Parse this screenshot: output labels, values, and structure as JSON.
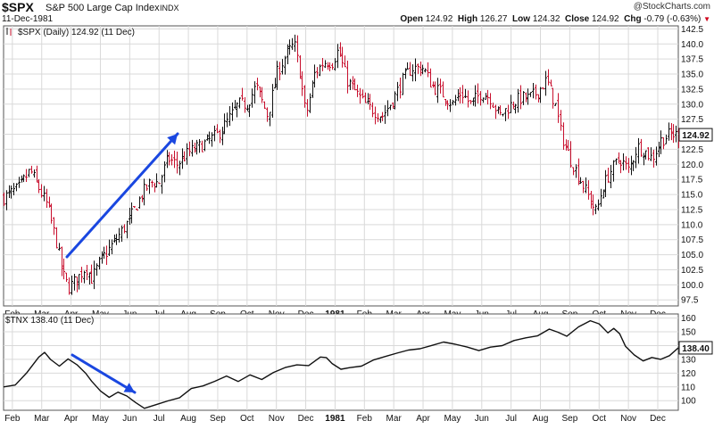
{
  "header": {
    "symbol": "$SPX",
    "name": "S&P 500 Large Cap Index",
    "exchange": "INDX",
    "date": "11-Dec-1981",
    "logo": "@StockCharts.com",
    "open_label": "Open",
    "open": "124.92",
    "high_label": "High",
    "high": "126.27",
    "low_label": "Low",
    "low": "124.32",
    "close_label": "Close",
    "close": "124.92",
    "chg_label": "Chg",
    "chg": "-0.79 (-0.63%)"
  },
  "chart_data": [
    {
      "type": "ohlc",
      "legend": "$SPX (Daily) 124.92 (11 Dec)",
      "last_value": "124.92",
      "ylim": [
        96.5,
        143
      ],
      "y_ticks": [
        97.5,
        100.0,
        102.5,
        105.0,
        107.5,
        110.0,
        112.5,
        115.0,
        117.5,
        120.0,
        122.5,
        125.0,
        127.5,
        130.0,
        132.5,
        135.0,
        137.5,
        140.0,
        142.5
      ],
      "x_labels": [
        "Feb",
        "Mar",
        "Apr",
        "May",
        "Jun",
        "Jul",
        "Aug",
        "Sep",
        "Oct",
        "Nov",
        "Dec",
        "1981",
        "Feb",
        "Mar",
        "Apr",
        "May",
        "Jun",
        "Jul",
        "Aug",
        "Sep",
        "Oct",
        "Nov",
        "Dec"
      ],
      "x_domain": [
        0,
        23
      ],
      "x_label_pos": [
        0.3,
        1.3,
        2.3,
        3.3,
        4.3,
        5.3,
        6.3,
        7.3,
        8.3,
        9.3,
        10.3,
        11.3,
        12.3,
        13.3,
        14.3,
        15.3,
        16.3,
        17.3,
        18.3,
        19.3,
        20.3,
        21.3,
        22.3
      ],
      "close_path": [
        [
          0,
          114.5
        ],
        [
          0.5,
          116
        ],
        [
          0.9,
          119
        ],
        [
          1.2,
          116
        ],
        [
          1.5,
          113
        ],
        [
          1.8,
          107
        ],
        [
          2.0,
          102
        ],
        [
          2.2,
          99.5
        ],
        [
          2.5,
          101
        ],
        [
          2.8,
          103
        ],
        [
          3.0,
          101
        ],
        [
          3.3,
          104
        ],
        [
          3.6,
          106
        ],
        [
          3.9,
          108
        ],
        [
          4.3,
          111
        ],
        [
          4.7,
          115
        ],
        [
          5.0,
          117
        ],
        [
          5.3,
          117
        ],
        [
          5.6,
          121
        ],
        [
          5.9,
          120
        ],
        [
          6.3,
          122
        ],
        [
          6.7,
          123
        ],
        [
          7.0,
          124
        ],
        [
          7.3,
          125
        ],
        [
          7.6,
          127
        ],
        [
          8.0,
          130
        ],
        [
          8.3,
          130
        ],
        [
          8.6,
          133
        ],
        [
          9.0,
          128
        ],
        [
          9.3,
          135
        ],
        [
          9.6,
          138
        ],
        [
          9.9,
          140
        ],
        [
          10.1,
          135
        ],
        [
          10.3,
          128
        ],
        [
          10.6,
          135
        ],
        [
          10.9,
          137
        ],
        [
          11.2,
          137
        ],
        [
          11.4,
          139
        ],
        [
          11.7,
          134
        ],
        [
          12.0,
          132
        ],
        [
          12.3,
          130
        ],
        [
          12.6,
          129
        ],
        [
          12.9,
          128
        ],
        [
          13.3,
          131
        ],
        [
          13.6,
          134
        ],
        [
          13.9,
          136
        ],
        [
          14.3,
          136
        ],
        [
          14.6,
          133
        ],
        [
          14.9,
          132
        ],
        [
          15.3,
          130
        ],
        [
          15.6,
          132
        ],
        [
          15.9,
          130
        ],
        [
          16.3,
          132
        ],
        [
          16.6,
          131
        ],
        [
          16.9,
          128
        ],
        [
          17.3,
          130
        ],
        [
          17.6,
          131
        ],
        [
          17.9,
          131
        ],
        [
          18.2,
          132
        ],
        [
          18.5,
          134
        ],
        [
          18.8,
          130
        ],
        [
          19.0,
          125
        ],
        [
          19.3,
          121
        ],
        [
          19.6,
          118
        ],
        [
          19.9,
          115
        ],
        [
          20.2,
          112
        ],
        [
          20.4,
          116
        ],
        [
          20.7,
          119
        ],
        [
          21.0,
          121
        ],
        [
          21.3,
          119
        ],
        [
          21.6,
          123
        ],
        [
          21.9,
          122
        ],
        [
          22.1,
          121
        ],
        [
          22.4,
          124
        ],
        [
          22.7,
          125
        ],
        [
          23.0,
          124.9
        ]
      ]
    },
    {
      "type": "line",
      "legend": "$TNX 138.40 (11 Dec)",
      "last_value": "138.40",
      "ylim": [
        93,
        163
      ],
      "y_ticks": [
        100,
        110,
        120,
        130,
        140,
        150,
        160
      ],
      "x_labels": [
        "Feb",
        "Mar",
        "Apr",
        "May",
        "Jun",
        "Jul",
        "Aug",
        "Sep",
        "Oct",
        "Nov",
        "Dec",
        "1981",
        "Feb",
        "Mar",
        "Apr",
        "May",
        "Jun",
        "Jul",
        "Aug",
        "Sep",
        "Oct",
        "Nov",
        "Dec"
      ],
      "x_domain": [
        0,
        23
      ],
      "x_label_pos": [
        0.3,
        1.3,
        2.3,
        3.3,
        4.3,
        5.3,
        6.3,
        7.3,
        8.3,
        9.3,
        10.3,
        11.3,
        12.3,
        13.3,
        14.3,
        15.3,
        16.3,
        17.3,
        18.3,
        19.3,
        20.3,
        21.3,
        22.3
      ],
      "series": [
        [
          0,
          110
        ],
        [
          0.4,
          112
        ],
        [
          0.8,
          120
        ],
        [
          1.2,
          132
        ],
        [
          1.4,
          135
        ],
        [
          1.6,
          130
        ],
        [
          1.9,
          126
        ],
        [
          2.2,
          130
        ],
        [
          2.5,
          127
        ],
        [
          2.8,
          120
        ],
        [
          3.0,
          115
        ],
        [
          3.3,
          108
        ],
        [
          3.6,
          103
        ],
        [
          3.9,
          106
        ],
        [
          4.2,
          103
        ],
        [
          4.5,
          98
        ],
        [
          4.8,
          95
        ],
        [
          5.2,
          98
        ],
        [
          5.6,
          100
        ],
        [
          6.0,
          103
        ],
        [
          6.4,
          108
        ],
        [
          6.8,
          110
        ],
        [
          7.2,
          114
        ],
        [
          7.6,
          117
        ],
        [
          8.0,
          113
        ],
        [
          8.4,
          118
        ],
        [
          8.8,
          116
        ],
        [
          9.2,
          120
        ],
        [
          9.6,
          124
        ],
        [
          10.0,
          125
        ],
        [
          10.4,
          126
        ],
        [
          10.8,
          131
        ],
        [
          11.0,
          132
        ],
        [
          11.2,
          126
        ],
        [
          11.5,
          123
        ],
        [
          11.8,
          124
        ],
        [
          12.2,
          126
        ],
        [
          12.6,
          130
        ],
        [
          13.0,
          132
        ],
        [
          13.4,
          134
        ],
        [
          13.8,
          136
        ],
        [
          14.2,
          138
        ],
        [
          14.6,
          140
        ],
        [
          15.0,
          142
        ],
        [
          15.4,
          141
        ],
        [
          15.8,
          138
        ],
        [
          16.2,
          136
        ],
        [
          16.6,
          139
        ],
        [
          17.0,
          140
        ],
        [
          17.4,
          144
        ],
        [
          17.8,
          146
        ],
        [
          18.2,
          148
        ],
        [
          18.6,
          152
        ],
        [
          18.9,
          150
        ],
        [
          19.2,
          147
        ],
        [
          19.6,
          153
        ],
        [
          20.0,
          158
        ],
        [
          20.3,
          155
        ],
        [
          20.6,
          150
        ],
        [
          20.8,
          153
        ],
        [
          21.0,
          148
        ],
        [
          21.2,
          140
        ],
        [
          21.5,
          133
        ],
        [
          21.8,
          129
        ],
        [
          22.1,
          131
        ],
        [
          22.4,
          130
        ],
        [
          22.7,
          133
        ],
        [
          23.0,
          138.4
        ]
      ]
    }
  ],
  "colors": {
    "up": "#111111",
    "down": "#c8102e",
    "arrow": "#1a47e0",
    "grid": "#d9d9d9",
    "frame": "#555555"
  }
}
